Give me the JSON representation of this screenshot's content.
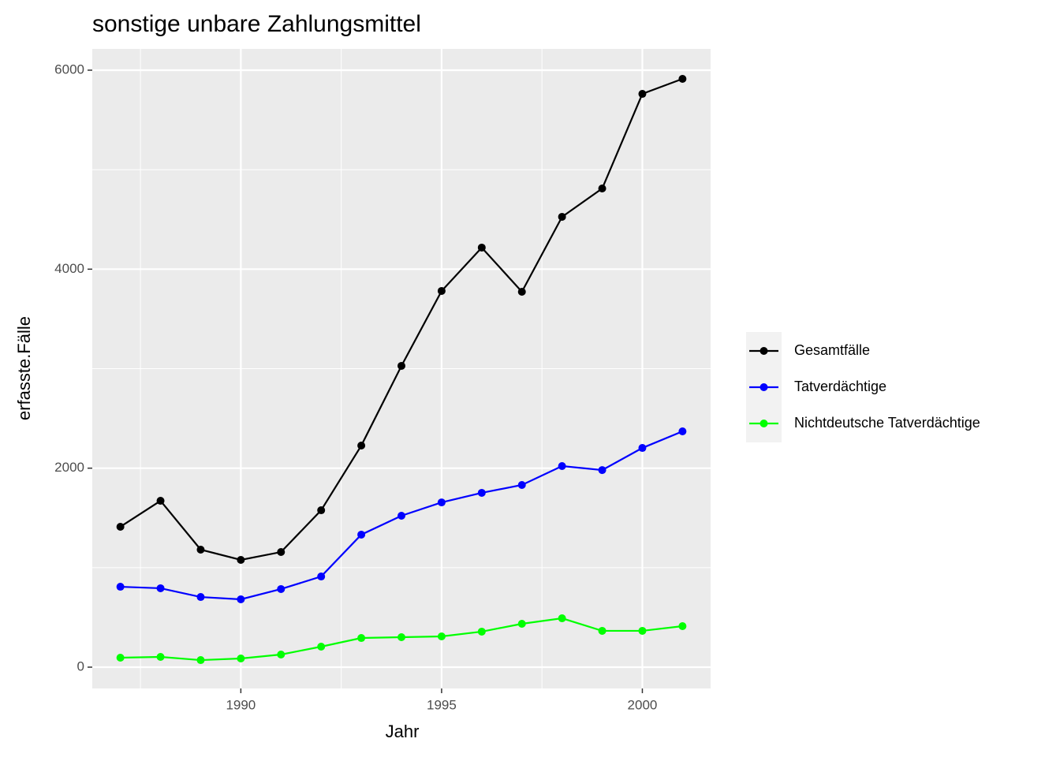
{
  "chart_data": {
    "type": "line",
    "title": "sonstige unbare Zahlungsmittel",
    "x_label": "Jahr",
    "y_label": "erfasste.Fälle",
    "x": [
      1987,
      1988,
      1989,
      1990,
      1991,
      1992,
      1993,
      1994,
      1995,
      1996,
      1997,
      1998,
      1999,
      2000,
      2001
    ],
    "series": [
      {
        "name": "Gesamtfälle",
        "color": "#000000",
        "values": [
          1411,
          1672,
          1181,
          1078,
          1157,
          1577,
          2227,
          3028,
          3781,
          4217,
          3773,
          4526,
          4811,
          5762,
          5913
        ]
      },
      {
        "name": "Tatverdächtige",
        "color": "#0000ff",
        "values": [
          808,
          793,
          705,
          682,
          785,
          911,
          1332,
          1522,
          1656,
          1752,
          1831,
          2021,
          1981,
          2203,
          2370
        ]
      },
      {
        "name": "Nichtdeutsche Tatverdächtige",
        "color": "#00ff00",
        "values": [
          95,
          103,
          71,
          87,
          127,
          206,
          293,
          301,
          309,
          357,
          436,
          491,
          365,
          365,
          412
        ]
      }
    ],
    "xlim": [
      1986.3,
      2001.7
    ],
    "xticks": [
      1990,
      1995,
      2000
    ],
    "x_minor_grid": [
      1987.5,
      1992.5,
      1997.5
    ],
    "ylim": [
      -214,
      6214
    ],
    "yticks": [
      0,
      2000,
      4000,
      6000
    ],
    "y_minor_grid": [
      1000,
      3000,
      5000
    ],
    "grid": true,
    "legend": "right"
  }
}
